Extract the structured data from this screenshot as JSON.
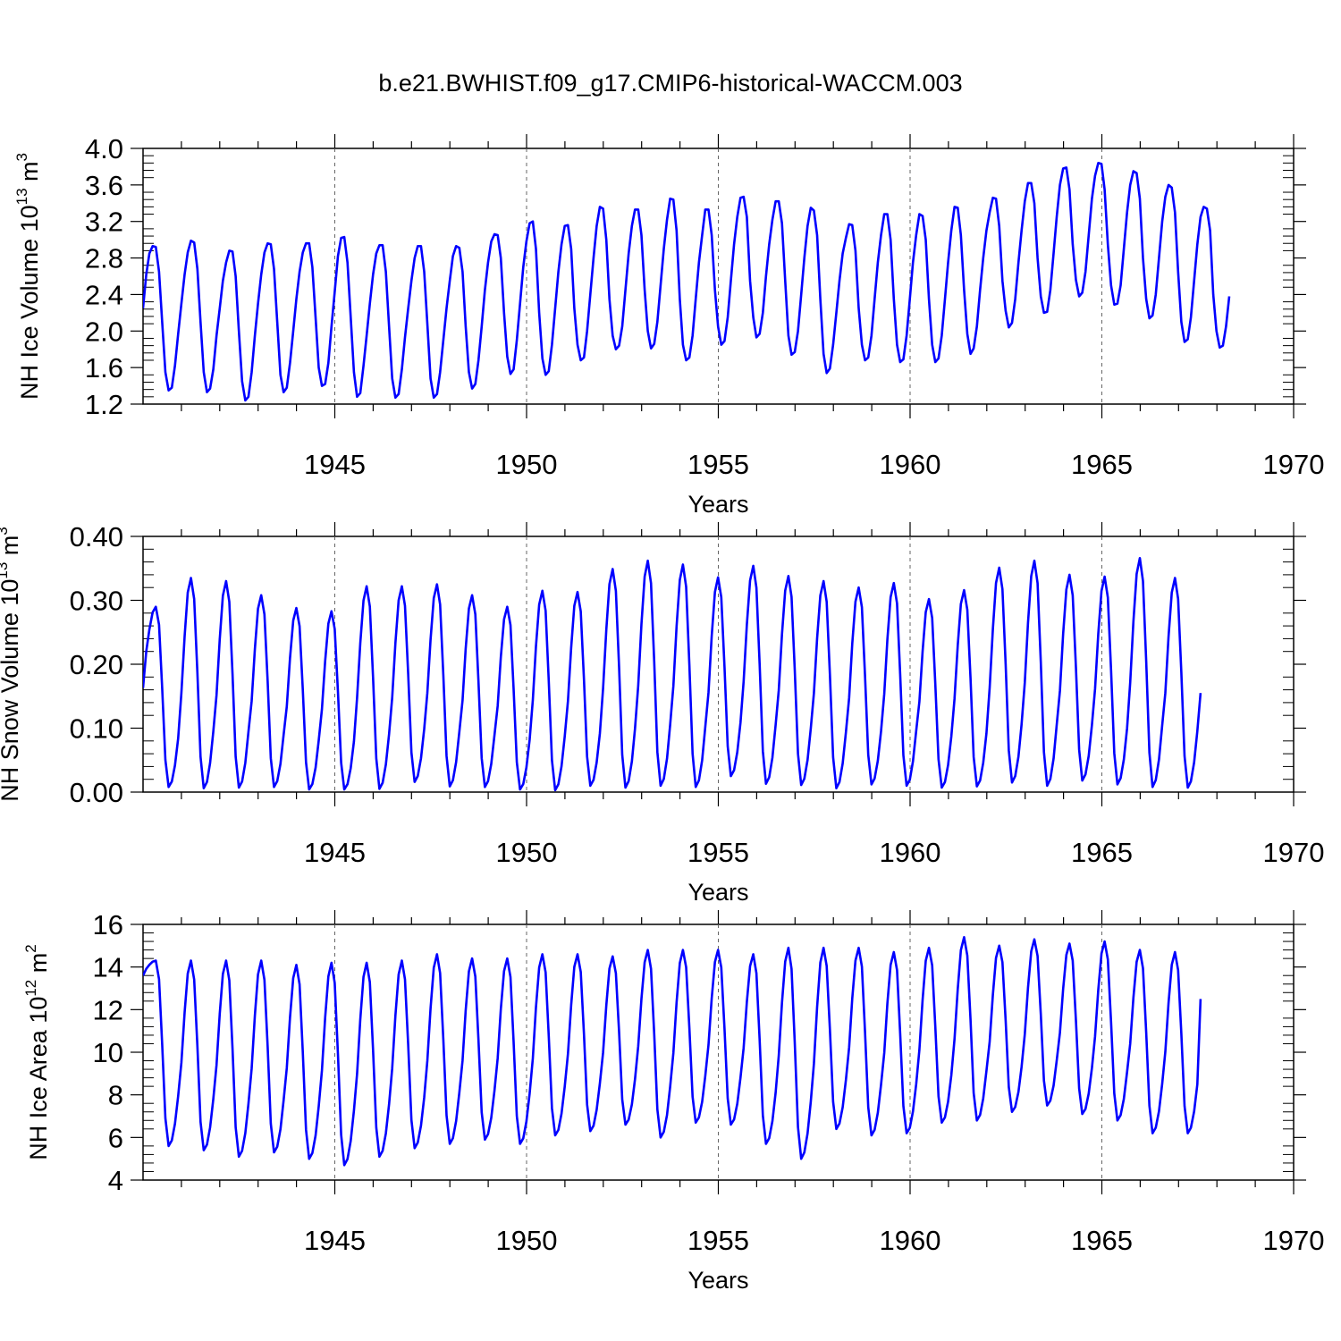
{
  "title": "b.e21.BWHIST.f09_g17.CMIP6-historical-WACCM.003",
  "chart_data": [
    {
      "type": "line",
      "id": "ice-volume",
      "ylabel": "NH Ice Volume 10",
      "ylabel_exp": "13",
      "ylabel_unit": " m",
      "ylabel_unit_exp": "3",
      "xlabel": "Years",
      "xlim": [
        1940,
        1970
      ],
      "ylim": [
        1.2,
        4.0
      ],
      "yticks": [
        1.2,
        1.6,
        2.0,
        2.4,
        2.8,
        3.2,
        3.6,
        4.0
      ],
      "ytick_labels": [
        "1.2",
        "1.6",
        "2.0",
        "2.4",
        "2.8",
        "3.2",
        "3.6",
        "4.0"
      ],
      "xticks": [
        1945,
        1950,
        1955,
        1960,
        1965,
        1970
      ],
      "xtick_labels": [
        "1945",
        "1950",
        "1955",
        "1960",
        "1965",
        "1970"
      ],
      "line_color": "#0000ff",
      "series": [
        {
          "name": "NH Ice Volume",
          "start_year": 1940.0,
          "step": 0.0833,
          "values": [
            2.25,
            2.62,
            2.85,
            2.93,
            2.92,
            2.65,
            2.1,
            1.55,
            1.35,
            1.38,
            1.62,
            1.97,
            2.3,
            2.62,
            2.86,
            2.99,
            2.97,
            2.68,
            2.1,
            1.55,
            1.33,
            1.37,
            1.58,
            1.95,
            2.25,
            2.55,
            2.75,
            2.88,
            2.87,
            2.6,
            2.0,
            1.45,
            1.24,
            1.28,
            1.55,
            1.95,
            2.3,
            2.62,
            2.86,
            2.96,
            2.95,
            2.68,
            2.1,
            1.52,
            1.33,
            1.38,
            1.65,
            2.0,
            2.35,
            2.65,
            2.86,
            2.96,
            2.96,
            2.7,
            2.15,
            1.6,
            1.4,
            1.42,
            1.65,
            2.05,
            2.43,
            2.82,
            3.02,
            3.03,
            2.75,
            2.15,
            1.55,
            1.28,
            1.32,
            1.62,
            1.95,
            2.3,
            2.62,
            2.85,
            2.94,
            2.94,
            2.65,
            2.05,
            1.48,
            1.27,
            1.31,
            1.58,
            1.93,
            2.25,
            2.55,
            2.8,
            2.93,
            2.93,
            2.65,
            2.08,
            1.48,
            1.27,
            1.31,
            1.55,
            1.9,
            2.25,
            2.55,
            2.82,
            2.93,
            2.91,
            2.65,
            2.05,
            1.55,
            1.37,
            1.42,
            1.68,
            2.05,
            2.45,
            2.75,
            2.98,
            3.06,
            3.05,
            2.8,
            2.2,
            1.72,
            1.53,
            1.58,
            1.9,
            2.3,
            2.7,
            2.98,
            3.18,
            3.2,
            2.9,
            2.2,
            1.7,
            1.52,
            1.56,
            1.85,
            2.25,
            2.65,
            2.95,
            3.15,
            3.16,
            2.9,
            2.25,
            1.85,
            1.68,
            1.71,
            2.0,
            2.4,
            2.8,
            3.15,
            3.36,
            3.34,
            3.0,
            2.35,
            1.95,
            1.8,
            1.84,
            2.05,
            2.45,
            2.85,
            3.15,
            3.33,
            3.33,
            3.05,
            2.45,
            2.0,
            1.81,
            1.86,
            2.1,
            2.5,
            2.9,
            3.22,
            3.45,
            3.44,
            3.1,
            2.35,
            1.85,
            1.68,
            1.71,
            1.95,
            2.35,
            2.75,
            3.05,
            3.33,
            3.33,
            3.05,
            2.45,
            2.05,
            1.85,
            1.89,
            2.15,
            2.55,
            2.95,
            3.25,
            3.46,
            3.47,
            3.25,
            2.55,
            2.15,
            1.93,
            1.97,
            2.2,
            2.6,
            2.95,
            3.22,
            3.42,
            3.42,
            3.18,
            2.55,
            1.95,
            1.74,
            1.77,
            2.0,
            2.4,
            2.8,
            3.15,
            3.35,
            3.32,
            3.05,
            2.35,
            1.75,
            1.54,
            1.59,
            1.85,
            2.2,
            2.55,
            2.85,
            3.02,
            3.17,
            3.16,
            2.88,
            2.25,
            1.85,
            1.68,
            1.71,
            1.95,
            2.35,
            2.75,
            3.05,
            3.28,
            3.28,
            3.0,
            2.35,
            1.85,
            1.66,
            1.69,
            1.95,
            2.35,
            2.75,
            3.05,
            3.28,
            3.26,
            3.0,
            2.35,
            1.85,
            1.66,
            1.7,
            1.95,
            2.35,
            2.75,
            3.1,
            3.36,
            3.35,
            3.05,
            2.45,
            1.97,
            1.75,
            1.81,
            2.05,
            2.45,
            2.8,
            3.1,
            3.3,
            3.46,
            3.45,
            3.15,
            2.55,
            2.22,
            2.04,
            2.09,
            2.35,
            2.75,
            3.1,
            3.42,
            3.62,
            3.62,
            3.4,
            2.8,
            2.38,
            2.2,
            2.21,
            2.45,
            2.85,
            3.25,
            3.6,
            3.78,
            3.79,
            3.55,
            2.95,
            2.56,
            2.38,
            2.42,
            2.65,
            3.05,
            3.45,
            3.7,
            3.84,
            3.83,
            3.55,
            2.95,
            2.5,
            2.29,
            2.3,
            2.5,
            2.9,
            3.3,
            3.6,
            3.75,
            3.73,
            3.45,
            2.8,
            2.35,
            2.14,
            2.17,
            2.4,
            2.8,
            3.2,
            3.47,
            3.6,
            3.57,
            3.3,
            2.65,
            2.1,
            1.88,
            1.91,
            2.15,
            2.55,
            2.95,
            3.25,
            3.36,
            3.34,
            3.1,
            2.4,
            2.0,
            1.82,
            1.84,
            2.05,
            2.38
          ]
        }
      ]
    },
    {
      "type": "line",
      "id": "snow-volume",
      "ylabel": "NH Snow Volume 10",
      "ylabel_exp": "13",
      "ylabel_unit": " m",
      "ylabel_unit_exp": "3",
      "xlabel": "Years",
      "xlim": [
        1940,
        1970
      ],
      "ylim": [
        0.0,
        0.4
      ],
      "yticks": [
        0.0,
        0.1,
        0.2,
        0.3,
        0.4
      ],
      "ytick_labels": [
        "0.00",
        "0.10",
        "0.20",
        "0.30",
        "0.40"
      ],
      "xticks": [
        1945,
        1950,
        1955,
        1960,
        1965,
        1970
      ],
      "xtick_labels": [
        "1945",
        "1950",
        "1955",
        "1960",
        "1965",
        "1970"
      ],
      "line_color": "#0000ff",
      "series": [
        {
          "name": "NH Snow Volume",
          "start_year": 1940.0,
          "step": 0.0833,
          "peaks": [
            0.29,
            0.335,
            0.33,
            0.308,
            0.288,
            0.283,
            0.322,
            0.322,
            0.325,
            0.308,
            0.29,
            0.315,
            0.313,
            0.349,
            0.362,
            0.356,
            0.336,
            0.354,
            0.338,
            0.33,
            0.32,
            0.327,
            0.302,
            0.316,
            0.351,
            0.362,
            0.34,
            0.337,
            0.366,
            0.335
          ],
          "troughs": [
            0.008,
            0.006,
            0.007,
            0.008,
            0.004,
            0.004,
            0.005,
            0.016,
            0.009,
            0.008,
            0.004,
            0.003,
            0.01,
            0.007,
            0.01,
            0.008,
            0.025,
            0.013,
            0.011,
            0.006,
            0.012,
            0.01,
            0.007,
            0.009,
            0.015,
            0.01,
            0.018,
            0.012,
            0.008,
            0.007
          ],
          "start_value": 0.163,
          "end_value": 0.155
        }
      ]
    },
    {
      "type": "line",
      "id": "ice-area",
      "ylabel": "NH Ice Area 10",
      "ylabel_exp": "12",
      "ylabel_unit": " m",
      "ylabel_unit_exp": "2",
      "xlabel": "Years",
      "xlim": [
        1940,
        1970
      ],
      "ylim": [
        4,
        16
      ],
      "yticks": [
        4,
        6,
        8,
        10,
        12,
        14,
        16
      ],
      "ytick_labels": [
        "4",
        "6",
        "8",
        "10",
        "12",
        "14",
        "16"
      ],
      "xticks": [
        1945,
        1950,
        1955,
        1960,
        1965,
        1970
      ],
      "xtick_labels": [
        "1945",
        "1950",
        "1955",
        "1960",
        "1965",
        "1970"
      ],
      "line_color": "#0000ff",
      "series": [
        {
          "name": "NH Ice Area",
          "start_year": 1940.0,
          "step": 0.0833,
          "peaks": [
            14.3,
            14.3,
            14.3,
            14.3,
            14.1,
            14.2,
            14.2,
            14.3,
            14.6,
            14.4,
            14.4,
            14.6,
            14.6,
            14.5,
            14.8,
            14.8,
            14.8,
            14.6,
            14.9,
            14.9,
            14.9,
            14.7,
            14.9,
            15.4,
            15.0,
            15.3,
            15.1,
            15.2,
            14.8,
            14.7
          ],
          "troughs": [
            5.6,
            5.4,
            5.1,
            5.3,
            5.0,
            4.7,
            5.1,
            5.5,
            5.7,
            5.9,
            5.7,
            6.1,
            6.3,
            6.6,
            6.0,
            6.7,
            6.6,
            5.7,
            5.0,
            6.4,
            6.1,
            6.2,
            6.7,
            6.8,
            7.2,
            7.5,
            7.1,
            6.8,
            6.2,
            6.2
          ],
          "start_value": 13.6,
          "end_value": 12.5
        }
      ]
    }
  ]
}
